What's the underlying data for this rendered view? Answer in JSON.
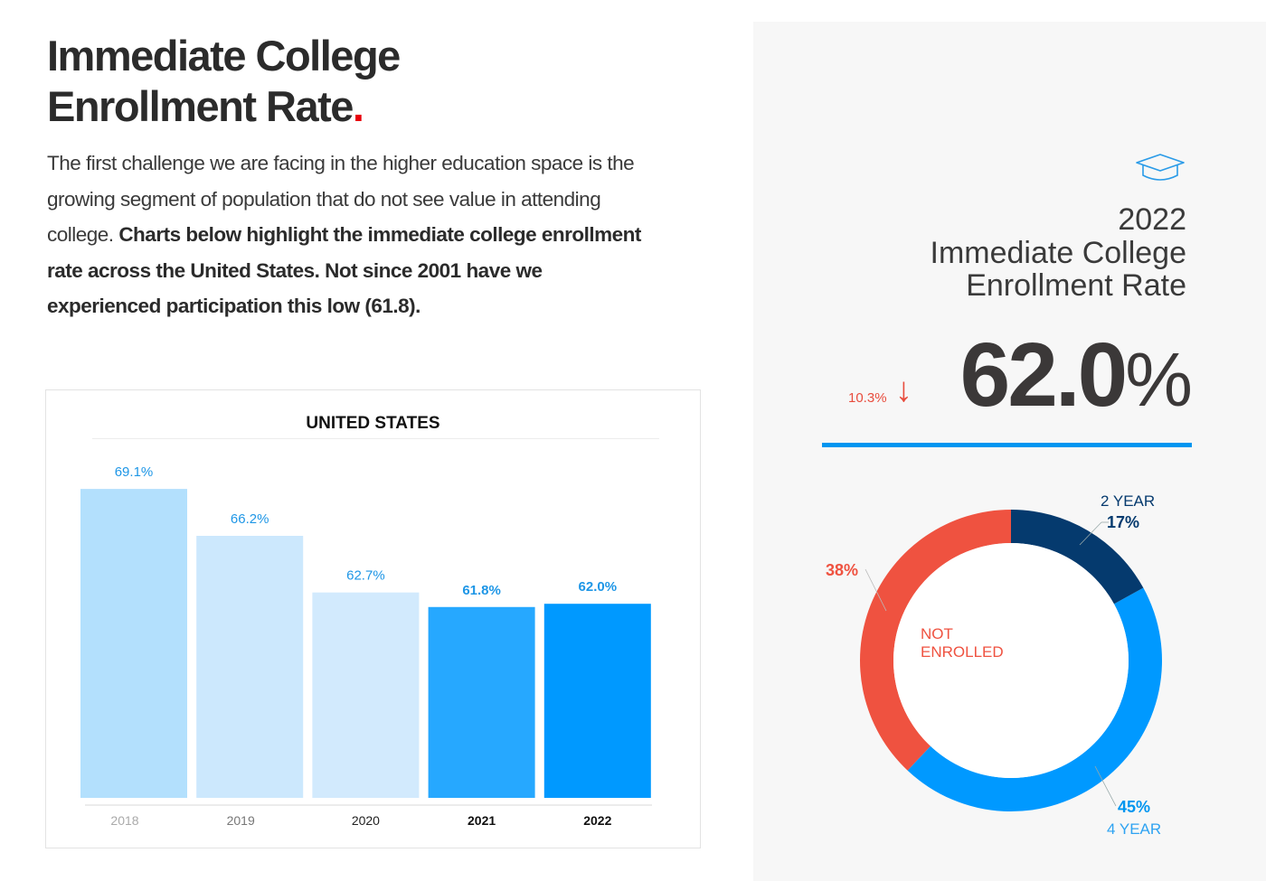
{
  "header": {
    "title_line1": "Immediate College",
    "title_line2": "Enrollment Rate",
    "title_dot": "."
  },
  "intro": {
    "plain": "The first challenge we are facing in the higher education space is the growing segment of population that do not see value in attending college. ",
    "bold": "Charts below highlight the immediate college enrollment rate across the United States. Not since 2001 have we experienced participation this low (61.8)."
  },
  "chart_data": [
    {
      "type": "bar",
      "title": "UNITED STATES",
      "categories": [
        "2018",
        "2019",
        "2020",
        "2021",
        "2022"
      ],
      "values": [
        69.1,
        66.2,
        62.7,
        61.8,
        62.0
      ],
      "value_labels": [
        "69.1%",
        "66.2%",
        "62.7%",
        "61.8%",
        "62.0%"
      ],
      "ylim": [
        50,
        70
      ],
      "grid": false,
      "colors": [
        "#b3e0fd",
        "#cce8fd",
        "#d2eafd",
        "#26a8ff",
        "#0099ff"
      ],
      "label_color": "#1e96e6",
      "tick_colors": [
        "#aaaaaa",
        "#777777",
        "#222222",
        "#111111",
        "#111111"
      ],
      "bold": [
        false,
        false,
        false,
        true,
        true
      ]
    },
    {
      "type": "pie",
      "donut": true,
      "slices": [
        {
          "name": "2 YEAR",
          "value": 17,
          "label": "17%",
          "color": "#053a6e"
        },
        {
          "name": "4 YEAR",
          "value": 45,
          "label": "45%",
          "color": "#0099ff"
        },
        {
          "name": "NOT ENROLLED",
          "value": 38,
          "label": "38%",
          "color": "#ef5240"
        }
      ]
    }
  ],
  "stat": {
    "year": "2022",
    "name_line1": "Immediate College",
    "name_line2": "Enrollment Rate",
    "change": "10.3%",
    "change_direction": "down",
    "change_arrow": "↓",
    "value": "62.0",
    "unit": "%",
    "icon": "graduation-cap-icon",
    "accent": "#0096f0"
  }
}
